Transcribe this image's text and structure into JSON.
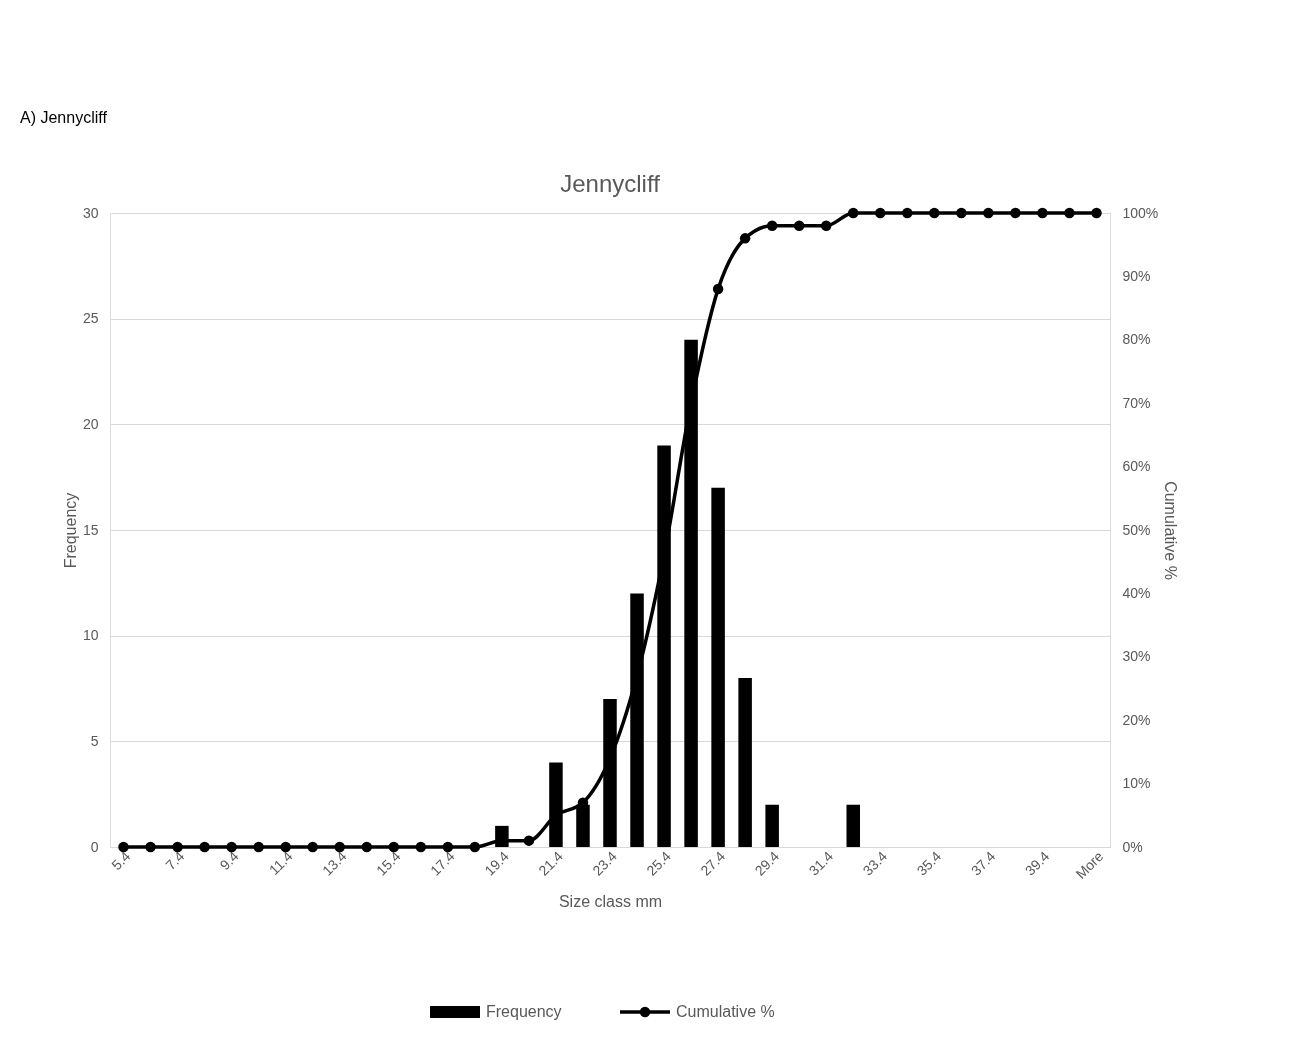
{
  "chart_data": {
    "type": "bar",
    "title": "Jennycliff",
    "xlabel": "Size class mm",
    "ylabel": "Frequency",
    "y2label": "Cumulative %",
    "annotations": [
      "A)    Jennycliff"
    ],
    "categories": [
      "5.4",
      null,
      "7.4",
      null,
      "9.4",
      null,
      "11.4",
      null,
      "13.4",
      null,
      "15.4",
      null,
      "17.4",
      null,
      "19.4",
      null,
      "21.4",
      null,
      "23.4",
      null,
      "25.4",
      null,
      "27.4",
      null,
      "29.4",
      null,
      "31.4",
      null,
      "33.4",
      null,
      "35.4",
      null,
      "37.4",
      null,
      "39.4",
      null,
      "More"
    ],
    "series": [
      {
        "name": "Frequency",
        "color": "#000000",
        "values": [
          0,
          0,
          0,
          0,
          0,
          0,
          0,
          0,
          0,
          0,
          0,
          0,
          0,
          0,
          1,
          0,
          4,
          2,
          7,
          12,
          19,
          24,
          17,
          8,
          2,
          0,
          0,
          2,
          0,
          0,
          0,
          0,
          0,
          0,
          0,
          0,
          0
        ]
      },
      {
        "name": "Cumulative %",
        "type": "line",
        "axis": "y2",
        "marker": "circle",
        "color": "#000000",
        "values": [
          0,
          0,
          0,
          0,
          0,
          0,
          0,
          0,
          0,
          0,
          0,
          0,
          0,
          0,
          1,
          1,
          5,
          7,
          14,
          27,
          46,
          70,
          88,
          96,
          98,
          98,
          98,
          100,
          100,
          100,
          100,
          100,
          100,
          100,
          100,
          100,
          100
        ]
      }
    ],
    "ylim": [
      0,
      30
    ],
    "yticks": [
      0,
      5,
      10,
      15,
      20,
      25,
      30
    ],
    "y2lim": [
      0,
      100
    ],
    "y2ticks": [
      {
        "value": 0,
        "label": "0%"
      },
      {
        "value": 10,
        "label": "10%"
      },
      {
        "value": 20,
        "label": "20%"
      },
      {
        "value": 30,
        "label": "30%"
      },
      {
        "value": 40,
        "label": "40%"
      },
      {
        "value": 50,
        "label": "50%"
      },
      {
        "value": 60,
        "label": "60%"
      },
      {
        "value": 70,
        "label": "70%"
      },
      {
        "value": 80,
        "label": "80%"
      },
      {
        "value": 90,
        "label": "90%"
      },
      {
        "value": 100,
        "label": "100%"
      }
    ],
    "grid": "y",
    "legend": "bottom"
  }
}
